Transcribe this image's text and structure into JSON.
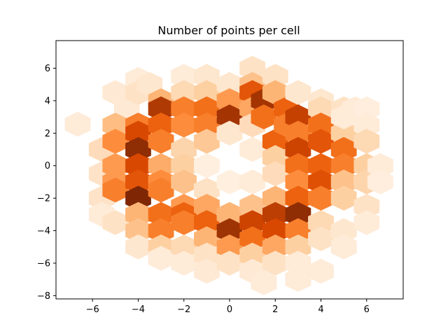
{
  "chart_data": {
    "type": "heatmap",
    "subtype": "hexbin",
    "title": "Number of points per cell",
    "xlabel": "",
    "ylabel": "",
    "xlim": [
      -7.6,
      7.6
    ],
    "ylim": [
      -8.2,
      7.7
    ],
    "xticks": [
      -6,
      -4,
      -2,
      0,
      2,
      4,
      6
    ],
    "yticks": [
      -8,
      -6,
      -4,
      -2,
      0,
      2,
      4,
      6
    ],
    "x_tick_labels": [
      "−6",
      "−4",
      "−2",
      "0",
      "2",
      "4",
      "6"
    ],
    "y_tick_labels": [
      "−8",
      "−6",
      "−4",
      "−2",
      "0",
      "2",
      "4",
      "6"
    ],
    "colormap": "Oranges",
    "hex_size_x": 0.564,
    "hex_size_y": 0.765,
    "grid": false,
    "cells": [
      {
        "x": -6.65,
        "y": 2.55,
        "v": 0.08
      },
      {
        "x": -5.6,
        "y": 1.0,
        "v": 0.18
      },
      {
        "x": -5.6,
        "y": -0.5,
        "v": 0.14
      },
      {
        "x": -5.6,
        "y": -2.0,
        "v": 0.14
      },
      {
        "x": -5.6,
        "y": -3.0,
        "v": 0.08
      },
      {
        "x": -5.0,
        "y": 4.5,
        "v": 0.1
      },
      {
        "x": -5.0,
        "y": 2.5,
        "v": 0.32
      },
      {
        "x": -5.0,
        "y": 1.5,
        "v": 0.5
      },
      {
        "x": -5.0,
        "y": 0.0,
        "v": 0.45
      },
      {
        "x": -5.0,
        "y": -1.0,
        "v": 0.45
      },
      {
        "x": -5.0,
        "y": -1.5,
        "v": 0.55
      },
      {
        "x": -5.0,
        "y": -3.5,
        "v": 0.15
      },
      {
        "x": -4.5,
        "y": 3.7,
        "v": 0.1
      },
      {
        "x": -4.0,
        "y": 5.3,
        "v": 0.08
      },
      {
        "x": -4.0,
        "y": 4.5,
        "v": 0.15
      },
      {
        "x": -4.0,
        "y": 2.5,
        "v": 0.55
      },
      {
        "x": -4.0,
        "y": 2.0,
        "v": 0.75
      },
      {
        "x": -4.0,
        "y": 1.0,
        "v": 0.95
      },
      {
        "x": -4.0,
        "y": 0.0,
        "v": 0.75
      },
      {
        "x": -4.0,
        "y": -1.0,
        "v": 0.7
      },
      {
        "x": -4.0,
        "y": -2.0,
        "v": 1.0
      },
      {
        "x": -4.0,
        "y": -3.0,
        "v": 0.35
      },
      {
        "x": -4.0,
        "y": -4.0,
        "v": 0.3
      },
      {
        "x": -4.0,
        "y": -5.0,
        "v": 0.12
      },
      {
        "x": -3.5,
        "y": 5.0,
        "v": 0.12
      },
      {
        "x": -3.0,
        "y": 4.0,
        "v": 0.35
      },
      {
        "x": -3.0,
        "y": 3.5,
        "v": 0.85
      },
      {
        "x": -3.0,
        "y": 2.5,
        "v": 0.65
      },
      {
        "x": -3.0,
        "y": 1.5,
        "v": 0.55
      },
      {
        "x": -3.0,
        "y": 0.0,
        "v": 0.38
      },
      {
        "x": -3.0,
        "y": -1.0,
        "v": 0.5
      },
      {
        "x": -3.0,
        "y": -1.5,
        "v": 0.55
      },
      {
        "x": -3.0,
        "y": -3.0,
        "v": 0.6
      },
      {
        "x": -3.0,
        "y": -4.0,
        "v": 0.55
      },
      {
        "x": -3.0,
        "y": -5.0,
        "v": 0.25
      },
      {
        "x": -3.0,
        "y": -5.7,
        "v": 0.08
      },
      {
        "x": -2.0,
        "y": 5.5,
        "v": 0.08
      },
      {
        "x": -2.0,
        "y": 4.5,
        "v": 0.2
      },
      {
        "x": -2.0,
        "y": 3.5,
        "v": 0.55
      },
      {
        "x": -2.0,
        "y": 2.5,
        "v": 0.5
      },
      {
        "x": -2.0,
        "y": 1.0,
        "v": 0.22
      },
      {
        "x": -2.0,
        "y": 0.0,
        "v": 0.25
      },
      {
        "x": -2.0,
        "y": -1.0,
        "v": 0.3
      },
      {
        "x": -2.0,
        "y": -2.5,
        "v": 0.45
      },
      {
        "x": -2.0,
        "y": -3.0,
        "v": 0.65
      },
      {
        "x": -2.0,
        "y": -3.5,
        "v": 0.55
      },
      {
        "x": -2.0,
        "y": -5.0,
        "v": 0.2
      },
      {
        "x": -2.0,
        "y": -6.0,
        "v": 0.08
      },
      {
        "x": -1.0,
        "y": 5.5,
        "v": 0.12
      },
      {
        "x": -1.0,
        "y": 4.5,
        "v": 0.25
      },
      {
        "x": -1.0,
        "y": 3.5,
        "v": 0.6
      },
      {
        "x": -1.0,
        "y": 2.5,
        "v": 0.55
      },
      {
        "x": -1.0,
        "y": 1.5,
        "v": 0.28
      },
      {
        "x": -1.0,
        "y": 0.0,
        "v": 0.05
      },
      {
        "x": -1.0,
        "y": -1.5,
        "v": 0.15
      },
      {
        "x": -1.0,
        "y": -2.5,
        "v": 0.4
      },
      {
        "x": -1.0,
        "y": -3.5,
        "v": 0.65
      },
      {
        "x": -1.0,
        "y": -4.5,
        "v": 0.35
      },
      {
        "x": -1.0,
        "y": -5.5,
        "v": 0.15
      },
      {
        "x": -1.0,
        "y": -6.5,
        "v": 0.1
      },
      {
        "x": 0.0,
        "y": 5.0,
        "v": 0.12
      },
      {
        "x": 0.0,
        "y": 4.0,
        "v": 0.45
      },
      {
        "x": 0.0,
        "y": 3.0,
        "v": 0.88
      },
      {
        "x": 0.0,
        "y": 2.0,
        "v": 0.12
      },
      {
        "x": 0.0,
        "y": -1.0,
        "v": 0.05
      },
      {
        "x": 0.0,
        "y": -3.0,
        "v": 0.35
      },
      {
        "x": 0.0,
        "y": -4.0,
        "v": 0.9
      },
      {
        "x": 0.0,
        "y": -5.0,
        "v": 0.45
      },
      {
        "x": 0.0,
        "y": -6.0,
        "v": 0.15
      },
      {
        "x": 1.0,
        "y": 6.0,
        "v": 0.15
      },
      {
        "x": 1.0,
        "y": 5.0,
        "v": 0.3
      },
      {
        "x": 1.0,
        "y": 4.5,
        "v": 0.7
      },
      {
        "x": 1.0,
        "y": 3.5,
        "v": 0.4
      },
      {
        "x": 1.0,
        "y": 2.5,
        "v": 0.18
      },
      {
        "x": 1.0,
        "y": 1.0,
        "v": 0.08
      },
      {
        "x": 1.0,
        "y": -1.0,
        "v": 0.08
      },
      {
        "x": 1.0,
        "y": -2.5,
        "v": 0.3
      },
      {
        "x": 1.0,
        "y": -3.5,
        "v": 0.78
      },
      {
        "x": 1.0,
        "y": -4.5,
        "v": 0.6
      },
      {
        "x": 1.0,
        "y": -5.5,
        "v": 0.25
      },
      {
        "x": 1.0,
        "y": -6.5,
        "v": 0.1
      },
      {
        "x": 1.5,
        "y": -7.2,
        "v": 0.08
      },
      {
        "x": 1.5,
        "y": 4.0,
        "v": 0.88
      },
      {
        "x": 1.5,
        "y": 3.0,
        "v": 0.6
      },
      {
        "x": 2.0,
        "y": 5.5,
        "v": 0.15
      },
      {
        "x": 2.0,
        "y": 4.5,
        "v": 0.35
      },
      {
        "x": 2.0,
        "y": 1.5,
        "v": 0.65
      },
      {
        "x": 2.0,
        "y": 0.5,
        "v": 0.25
      },
      {
        "x": 2.0,
        "y": -0.5,
        "v": 0.18
      },
      {
        "x": 2.0,
        "y": -2.0,
        "v": 0.35
      },
      {
        "x": 2.0,
        "y": -3.0,
        "v": 0.82
      },
      {
        "x": 2.0,
        "y": -4.0,
        "v": 0.75
      },
      {
        "x": 2.0,
        "y": -5.0,
        "v": 0.4
      },
      {
        "x": 2.0,
        "y": -6.0,
        "v": 0.15
      },
      {
        "x": 2.5,
        "y": 3.5,
        "v": 0.65
      },
      {
        "x": 2.5,
        "y": 2.5,
        "v": 0.55
      },
      {
        "x": 3.0,
        "y": 4.5,
        "v": 0.12
      },
      {
        "x": 3.0,
        "y": 3.0,
        "v": 0.8
      },
      {
        "x": 3.0,
        "y": 2.0,
        "v": 0.55
      },
      {
        "x": 3.0,
        "y": 1.0,
        "v": 0.78
      },
      {
        "x": 3.0,
        "y": 0.0,
        "v": 0.6
      },
      {
        "x": 3.0,
        "y": -1.0,
        "v": 0.5
      },
      {
        "x": 3.0,
        "y": -2.0,
        "v": 0.65
      },
      {
        "x": 3.0,
        "y": -3.0,
        "v": 0.95
      },
      {
        "x": 3.0,
        "y": -4.0,
        "v": 0.55
      },
      {
        "x": 3.0,
        "y": -5.0,
        "v": 0.25
      },
      {
        "x": 3.0,
        "y": -6.0,
        "v": 0.08
      },
      {
        "x": 3.0,
        "y": -7.0,
        "v": 0.08
      },
      {
        "x": 4.0,
        "y": 4.0,
        "v": 0.12
      },
      {
        "x": 4.0,
        "y": 3.5,
        "v": 0.2
      },
      {
        "x": 4.0,
        "y": 2.5,
        "v": 0.6
      },
      {
        "x": 4.0,
        "y": 1.5,
        "v": 0.7
      },
      {
        "x": 4.0,
        "y": 0.0,
        "v": 0.65
      },
      {
        "x": 4.0,
        "y": -1.0,
        "v": 0.72
      },
      {
        "x": 4.0,
        "y": -2.0,
        "v": 0.55
      },
      {
        "x": 4.0,
        "y": -3.5,
        "v": 0.2
      },
      {
        "x": 4.0,
        "y": -4.5,
        "v": 0.15
      },
      {
        "x": 4.0,
        "y": -6.5,
        "v": 0.08
      },
      {
        "x": 5.0,
        "y": 3.5,
        "v": 0.15
      },
      {
        "x": 5.0,
        "y": 2.0,
        "v": 0.25
      },
      {
        "x": 5.0,
        "y": 1.0,
        "v": 0.6
      },
      {
        "x": 5.0,
        "y": 0.0,
        "v": 0.55
      },
      {
        "x": 5.0,
        "y": -1.0,
        "v": 0.3
      },
      {
        "x": 5.0,
        "y": -2.0,
        "v": 0.25
      },
      {
        "x": 5.0,
        "y": -4.0,
        "v": 0.12
      },
      {
        "x": 5.0,
        "y": -5.0,
        "v": 0.08
      },
      {
        "x": 5.0,
        "y": 3.0,
        "v": 0.08
      },
      {
        "x": 5.5,
        "y": 3.5,
        "v": 0.08
      },
      {
        "x": 6.0,
        "y": 3.5,
        "v": 0.06
      },
      {
        "x": 6.0,
        "y": 2.5,
        "v": 0.08
      },
      {
        "x": 6.0,
        "y": 1.5,
        "v": 0.2
      },
      {
        "x": 6.0,
        "y": 0.0,
        "v": 0.25
      },
      {
        "x": 6.0,
        "y": -1.0,
        "v": 0.22
      },
      {
        "x": 6.0,
        "y": -2.5,
        "v": 0.15
      },
      {
        "x": 6.0,
        "y": -3.5,
        "v": 0.08
      },
      {
        "x": 6.6,
        "y": 0.0,
        "v": 0.08
      },
      {
        "x": 6.6,
        "y": -1.0,
        "v": 0.06
      }
    ]
  }
}
